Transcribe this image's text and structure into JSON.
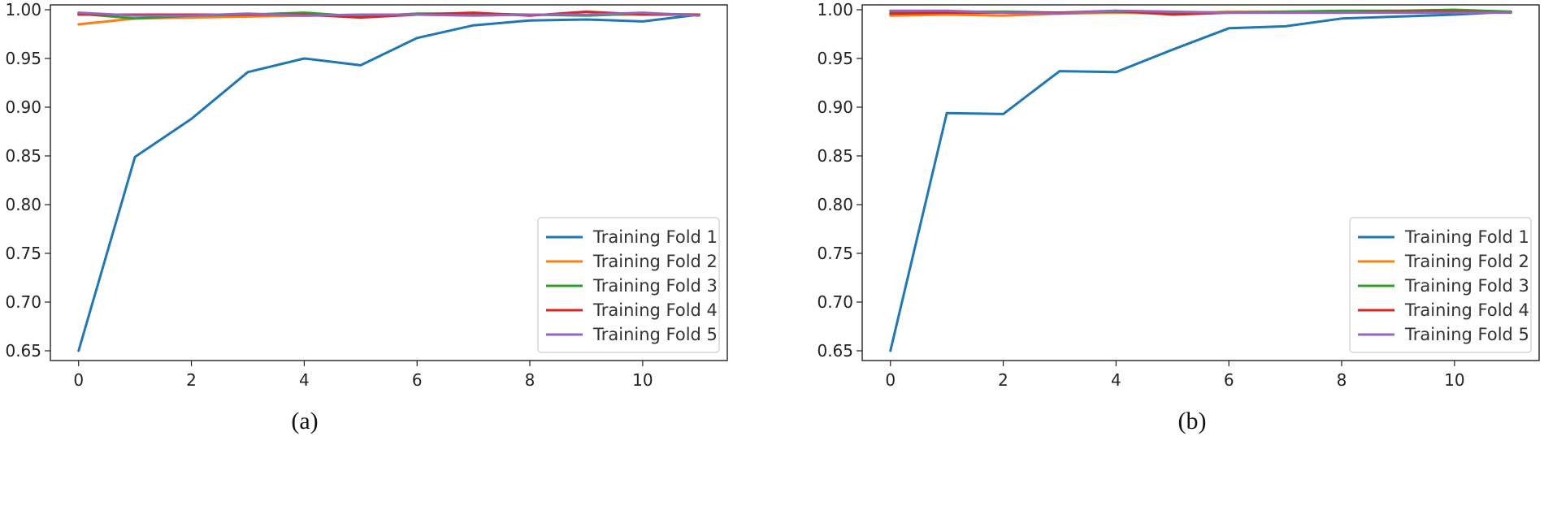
{
  "chart_data": [
    {
      "type": "line",
      "caption": "(a)",
      "title": "",
      "xlabel": "",
      "ylabel": "",
      "xlim": [
        -0.5,
        11.5
      ],
      "ylim": [
        0.64,
        1.005
      ],
      "xticks": [
        0,
        2,
        4,
        6,
        8,
        10
      ],
      "yticks": [
        0.65,
        0.7,
        0.75,
        0.8,
        0.85,
        0.9,
        0.95,
        1.0
      ],
      "xtick_labels": [
        "0",
        "2",
        "4",
        "6",
        "8",
        "10"
      ],
      "ytick_labels": [
        "0.65",
        "0.70",
        "0.75",
        "0.80",
        "0.85",
        "0.90",
        "0.95",
        "1.00"
      ],
      "grid": false,
      "legend_position": "lower-right",
      "x": [
        0,
        1,
        2,
        3,
        4,
        5,
        6,
        7,
        8,
        9,
        10,
        11
      ],
      "series": [
        {
          "name": "Training Fold 1",
          "color": "#1f77b4",
          "values": [
            0.65,
            0.849,
            0.888,
            0.936,
            0.95,
            0.943,
            0.971,
            0.984,
            0.989,
            0.99,
            0.988,
            0.995
          ]
        },
        {
          "name": "Training Fold 2",
          "color": "#ff7f0e",
          "values": [
            0.985,
            0.991,
            0.992,
            0.993,
            0.994,
            0.994,
            0.995,
            0.995,
            0.995,
            0.995,
            0.995,
            0.995
          ]
        },
        {
          "name": "Training Fold 3",
          "color": "#2ca02c",
          "values": [
            0.996,
            0.991,
            0.994,
            0.995,
            0.997,
            0.993,
            0.996,
            0.996,
            0.995,
            0.994,
            0.996,
            0.995
          ]
        },
        {
          "name": "Training Fold 4",
          "color": "#d62728",
          "values": [
            0.995,
            0.995,
            0.995,
            0.995,
            0.995,
            0.992,
            0.995,
            0.997,
            0.994,
            0.998,
            0.995,
            0.995
          ]
        },
        {
          "name": "Training Fold 5",
          "color": "#9467bd",
          "values": [
            0.997,
            0.994,
            0.994,
            0.996,
            0.994,
            0.995,
            0.995,
            0.994,
            0.995,
            0.995,
            0.997,
            0.994
          ]
        }
      ]
    },
    {
      "type": "line",
      "caption": "(b)",
      "title": "",
      "xlabel": "",
      "ylabel": "",
      "xlim": [
        -0.5,
        11.5
      ],
      "ylim": [
        0.64,
        1.005
      ],
      "xticks": [
        0,
        2,
        4,
        6,
        8,
        10
      ],
      "yticks": [
        0.65,
        0.7,
        0.75,
        0.8,
        0.85,
        0.9,
        0.95,
        1.0
      ],
      "xtick_labels": [
        "0",
        "2",
        "4",
        "6",
        "8",
        "10"
      ],
      "ytick_labels": [
        "0.65",
        "0.70",
        "0.75",
        "0.80",
        "0.85",
        "0.90",
        "0.95",
        "1.00"
      ],
      "grid": false,
      "legend_position": "lower-right",
      "x": [
        0,
        1,
        2,
        3,
        4,
        5,
        6,
        7,
        8,
        9,
        10,
        11
      ],
      "series": [
        {
          "name": "Training Fold 1",
          "color": "#1f77b4",
          "values": [
            0.65,
            0.894,
            0.893,
            0.937,
            0.936,
            0.959,
            0.981,
            0.983,
            0.991,
            0.993,
            0.995,
            0.998
          ]
        },
        {
          "name": "Training Fold 2",
          "color": "#ff7f0e",
          "values": [
            0.994,
            0.995,
            0.994,
            0.996,
            0.997,
            0.996,
            0.998,
            0.998,
            0.998,
            0.998,
            0.997,
            0.998
          ]
        },
        {
          "name": "Training Fold 3",
          "color": "#2ca02c",
          "values": [
            0.998,
            0.998,
            0.998,
            0.997,
            0.998,
            0.997,
            0.997,
            0.998,
            0.999,
            0.999,
            1.0,
            0.998
          ]
        },
        {
          "name": "Training Fold 4",
          "color": "#d62728",
          "values": [
            0.996,
            0.997,
            0.997,
            0.997,
            0.999,
            0.995,
            0.997,
            0.997,
            0.997,
            0.998,
            0.998,
            0.997
          ]
        },
        {
          "name": "Training Fold 5",
          "color": "#9467bd",
          "values": [
            0.999,
            0.999,
            0.997,
            0.996,
            0.999,
            0.998,
            0.997,
            0.997,
            0.997,
            0.997,
            0.997,
            0.997
          ]
        }
      ]
    }
  ]
}
